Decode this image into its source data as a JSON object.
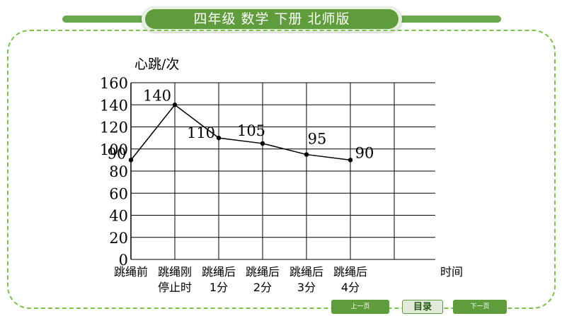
{
  "header": {
    "title": "四年级 数学 下册 北师版"
  },
  "navigation": {
    "prev_label": "上一页",
    "toc_label": "目录",
    "next_label": "下一页"
  },
  "colors": {
    "accent": "#5e9c3c",
    "frame": "#7cc24a",
    "line": "#000000"
  },
  "chart_data": {
    "type": "line",
    "ylabel": "心跳/次",
    "xlabel": "时间",
    "ylim": [
      0,
      160
    ],
    "yticks": [
      0,
      20,
      40,
      60,
      80,
      100,
      120,
      140,
      160
    ],
    "grid": true,
    "categories": [
      [
        "跳绳前"
      ],
      [
        "跳绳刚",
        "停止时"
      ],
      [
        "跳绳后",
        "1分"
      ],
      [
        "跳绳后",
        "2分"
      ],
      [
        "跳绳后",
        "3分"
      ],
      [
        "跳绳后",
        "4分"
      ]
    ],
    "values": [
      90,
      140,
      110,
      105,
      95,
      90
    ],
    "data_labels": [
      "90",
      "140",
      "110",
      "105",
      "95",
      "90"
    ]
  }
}
